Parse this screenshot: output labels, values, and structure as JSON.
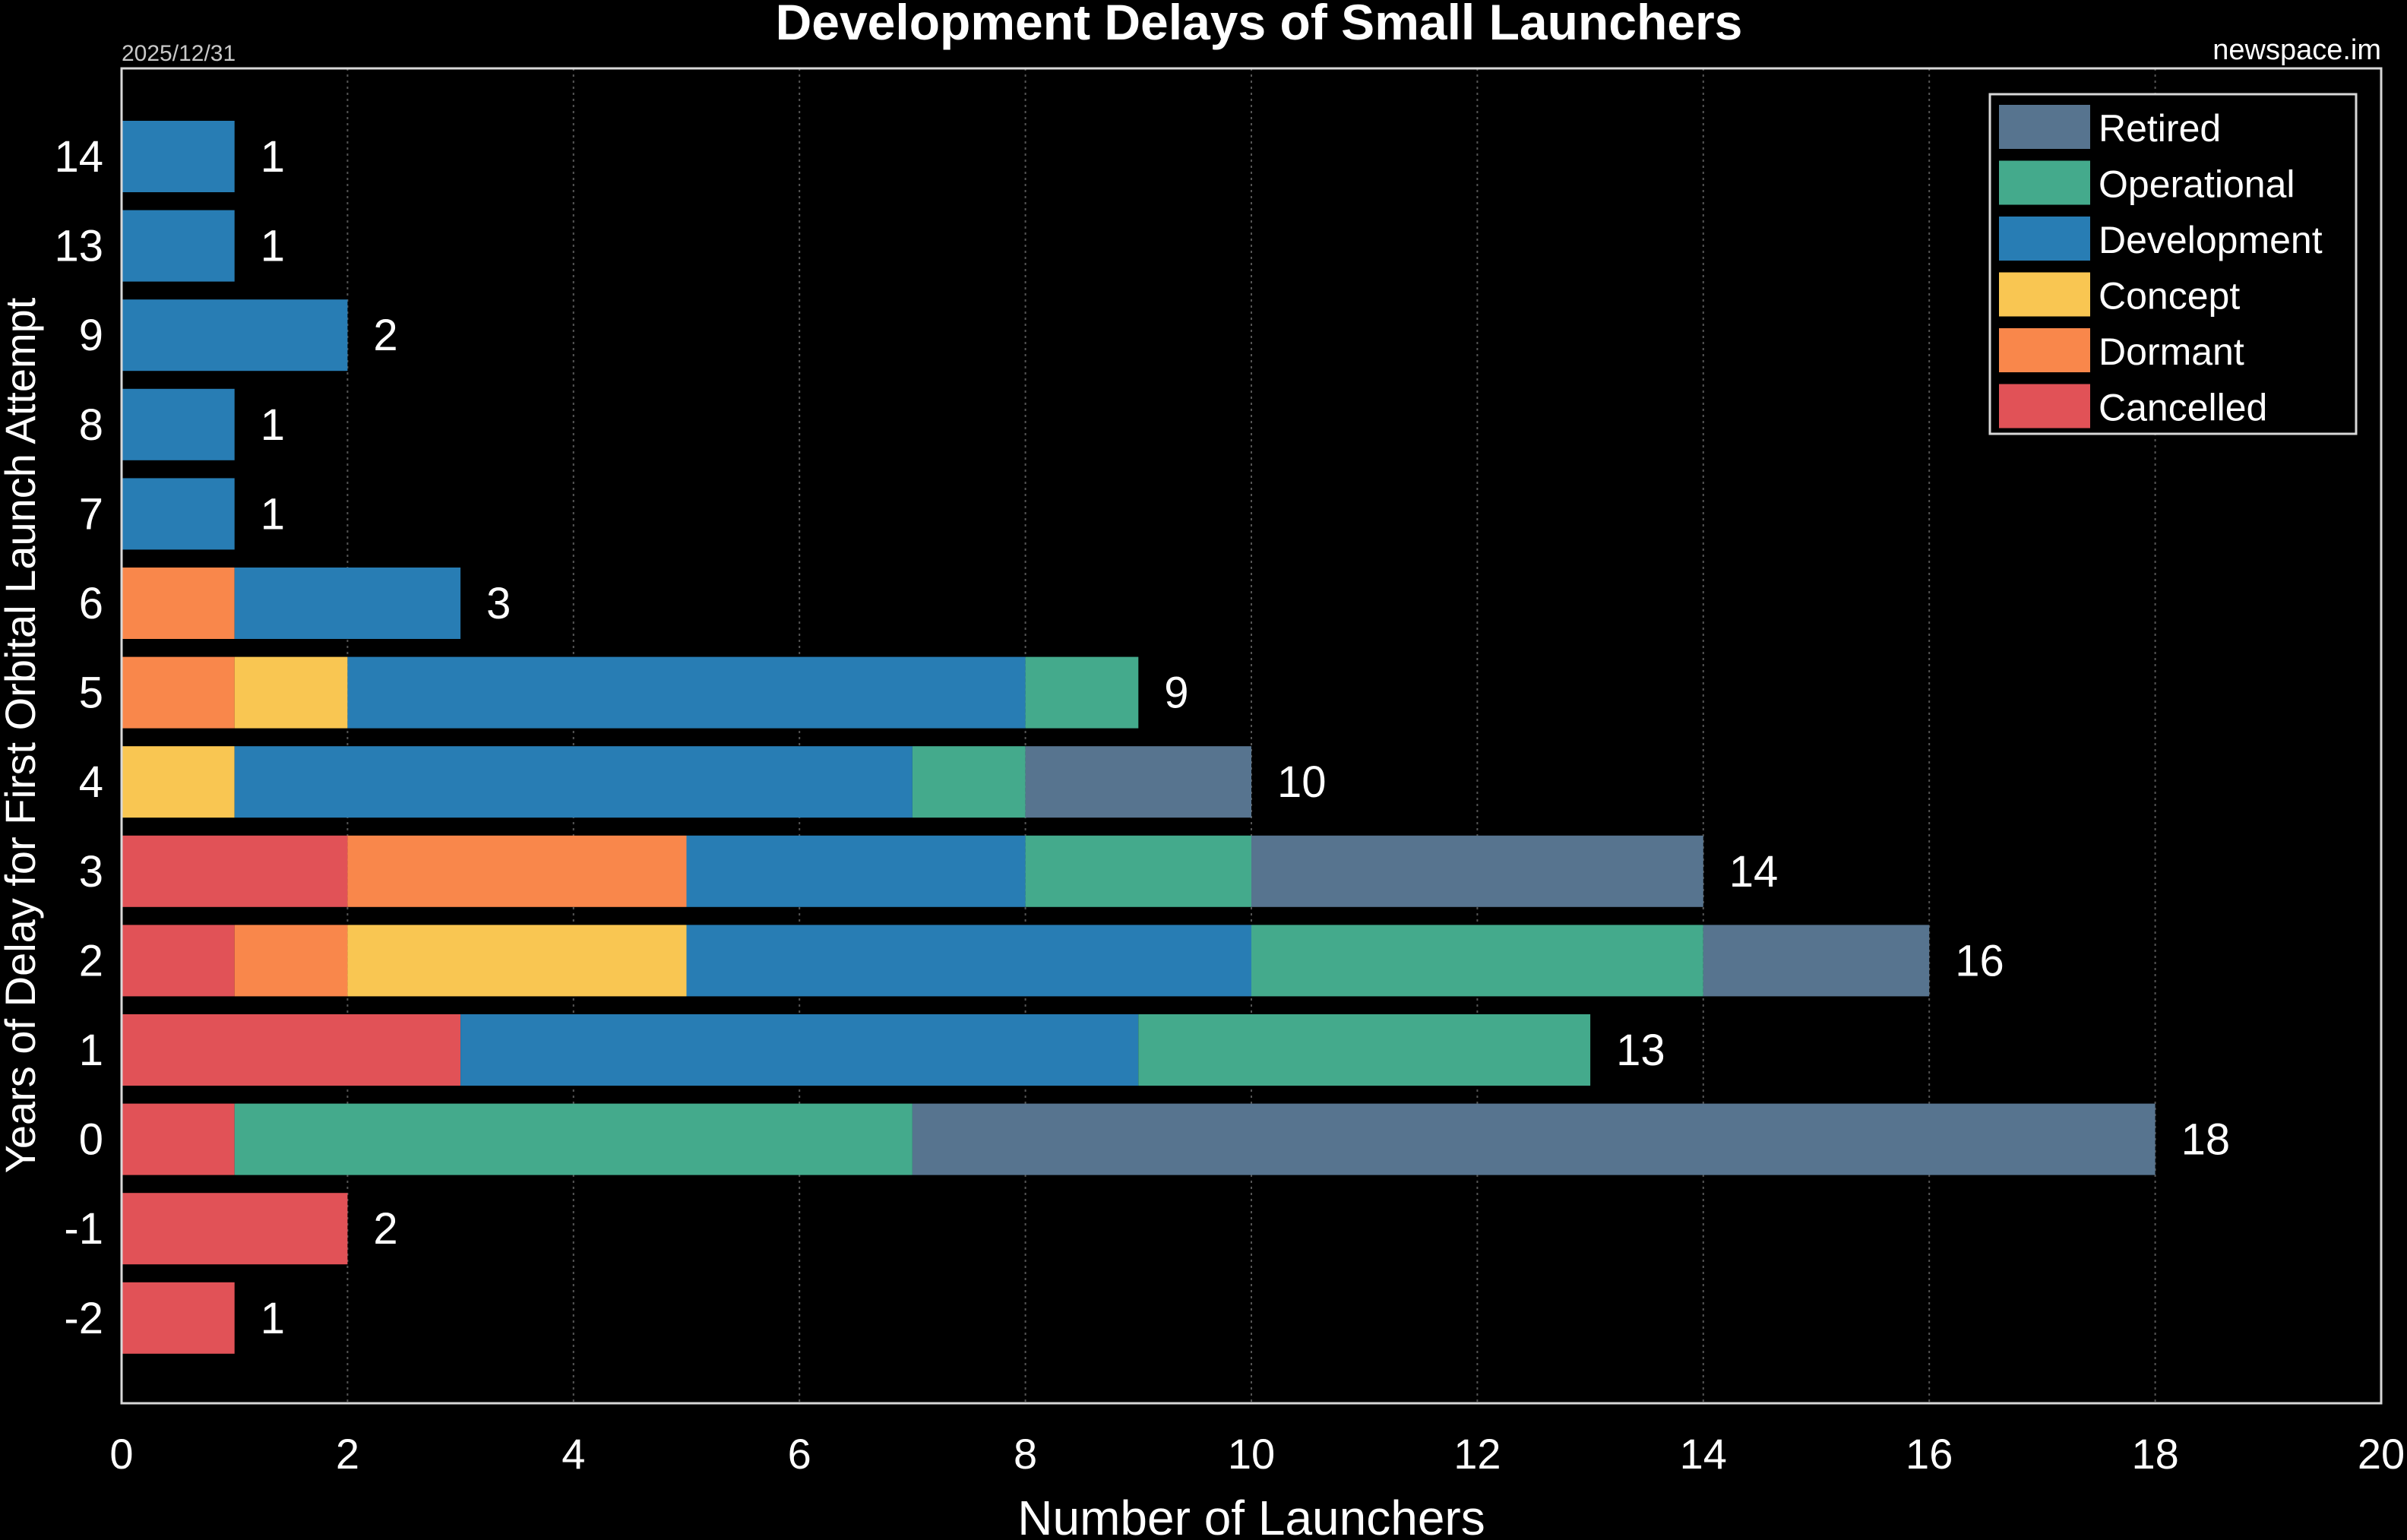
{
  "chart_data": {
    "type": "bar",
    "orientation": "horizontal",
    "stacked": true,
    "title": "Development Delays of Small Launchers",
    "date": "2025/12/31",
    "source": "newspace.im",
    "xlabel": "Number of Launchers",
    "ylabel": "Years of Delay for First Orbital Launch Attempt",
    "xlim": [
      0,
      20
    ],
    "xticks": [
      "0",
      "2",
      "4",
      "6",
      "8",
      "10",
      "12",
      "14",
      "16",
      "18",
      "20"
    ],
    "grid": "vertical dotted",
    "legend_position": "top-right",
    "categories": [
      "14",
      "13",
      "9",
      "8",
      "7",
      "6",
      "5",
      "4",
      "3",
      "2",
      "1",
      "0",
      "-1",
      "-2"
    ],
    "series": [
      {
        "name": "Cancelled",
        "color": "#E15257",
        "values": [
          0,
          0,
          0,
          0,
          0,
          0,
          0,
          0,
          2,
          1,
          3,
          1,
          2,
          1
        ]
      },
      {
        "name": "Dormant",
        "color": "#F9874B",
        "values": [
          0,
          0,
          0,
          0,
          0,
          1,
          1,
          0,
          3,
          1,
          0,
          0,
          0,
          0
        ]
      },
      {
        "name": "Concept",
        "color": "#F9C652",
        "values": [
          0,
          0,
          0,
          0,
          0,
          0,
          1,
          1,
          0,
          3,
          0,
          0,
          0,
          0
        ]
      },
      {
        "name": "Development",
        "color": "#287DB4",
        "values": [
          1,
          1,
          2,
          1,
          1,
          2,
          6,
          6,
          3,
          5,
          6,
          0,
          0,
          0
        ]
      },
      {
        "name": "Operational",
        "color": "#44AA8C",
        "values": [
          0,
          0,
          0,
          0,
          0,
          0,
          1,
          1,
          2,
          4,
          4,
          6,
          0,
          0
        ]
      },
      {
        "name": "Retired",
        "color": "#57748F",
        "values": [
          0,
          0,
          0,
          0,
          0,
          0,
          0,
          2,
          4,
          2,
          0,
          11,
          0,
          0
        ]
      }
    ],
    "totals": [
      "1",
      "1",
      "2",
      "1",
      "1",
      "3",
      "9",
      "10",
      "14",
      "16",
      "13",
      "18",
      "2",
      "1"
    ],
    "legend_order": [
      "Retired",
      "Operational",
      "Development",
      "Concept",
      "Dormant",
      "Cancelled"
    ]
  }
}
